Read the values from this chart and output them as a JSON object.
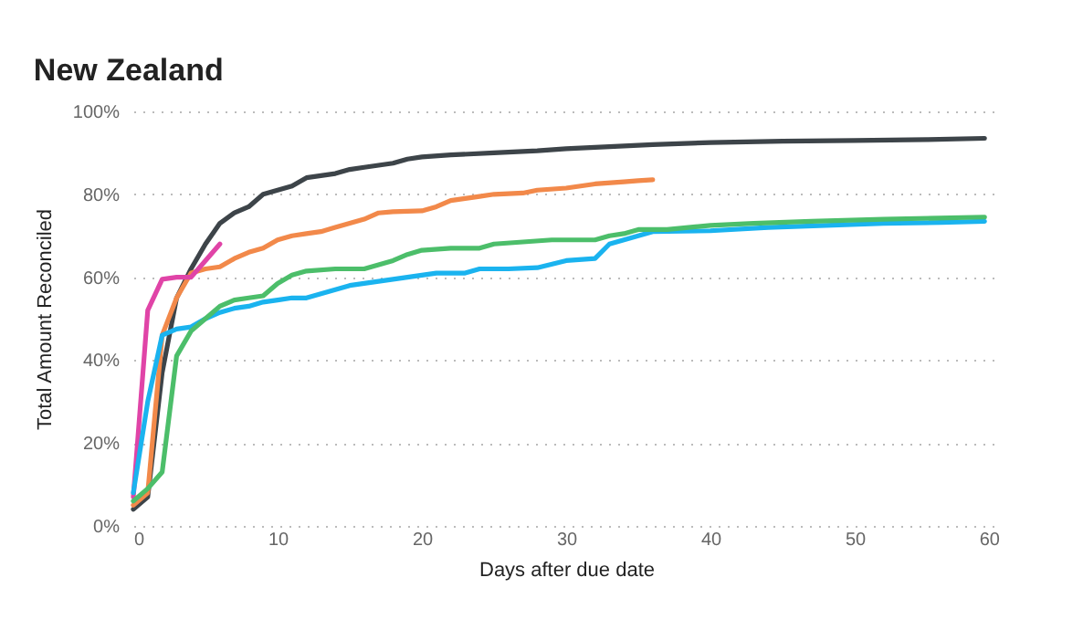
{
  "chart_data": {
    "type": "line",
    "title": "New Zealand",
    "xlabel": "Days after due date",
    "ylabel": "Total Amount Reconciled",
    "xlim": [
      0,
      60
    ],
    "xticks": [
      0,
      10,
      20,
      30,
      40,
      50,
      60
    ],
    "ylim": [
      0,
      100
    ],
    "yticks": [
      {
        "value": 0,
        "label": "0%"
      },
      {
        "value": 20,
        "label": "20%"
      },
      {
        "value": 40,
        "label": "40%"
      },
      {
        "value": 60,
        "label": "60%"
      },
      {
        "value": 80,
        "label": "80%"
      },
      {
        "value": 100,
        "label": "100%"
      }
    ],
    "grid": "y",
    "series": [
      {
        "color": "#3d4449",
        "x": [
          0,
          1,
          2,
          3,
          4,
          5,
          6,
          7,
          8,
          9,
          10,
          11,
          12,
          13,
          14,
          15,
          16,
          17,
          18,
          19,
          20,
          22,
          25,
          28,
          30,
          33,
          36,
          40,
          45,
          50,
          55,
          59
        ],
        "values": [
          4,
          7,
          37,
          55,
          62,
          68,
          73,
          75.5,
          77,
          80,
          81,
          82,
          84,
          84.5,
          85,
          86,
          86.5,
          87,
          87.5,
          88.5,
          89,
          89.5,
          90,
          90.5,
          91,
          91.5,
          92,
          92.5,
          92.8,
          93,
          93.2,
          93.5
        ]
      },
      {
        "color": "#f2894a",
        "x": [
          0,
          1,
          2,
          3,
          4,
          5,
          6,
          7,
          8,
          9,
          10,
          11,
          12,
          13,
          14,
          15,
          16,
          17,
          18,
          20,
          21,
          22,
          23,
          24,
          25,
          27,
          28,
          30,
          31,
          32,
          34,
          35,
          36
        ],
        "values": [
          5,
          8,
          46,
          55,
          61,
          62,
          62.5,
          64.5,
          66,
          67,
          69,
          70,
          70.5,
          71,
          72,
          73,
          74,
          75.5,
          75.8,
          76,
          77,
          78.5,
          79,
          79.5,
          80,
          80.3,
          81,
          81.5,
          82,
          82.5,
          83,
          83.3,
          83.5
        ]
      },
      {
        "color": "#e044a7",
        "x": [
          0,
          1,
          2,
          3,
          4,
          5,
          6
        ],
        "values": [
          7,
          52,
          59.5,
          60,
          60,
          64,
          68
        ]
      },
      {
        "color": "#1ab3ef",
        "x": [
          0,
          1,
          2,
          3,
          4,
          5,
          6,
          7,
          8,
          9,
          10,
          11,
          12,
          13,
          14,
          15,
          16,
          17,
          18,
          19,
          20,
          21,
          22,
          23,
          24,
          26,
          28,
          30,
          32,
          33,
          34,
          35,
          36,
          40,
          44,
          48,
          52,
          56,
          59
        ],
        "values": [
          8,
          30,
          46,
          47.5,
          48,
          50,
          51.5,
          52.5,
          53,
          54,
          54.5,
          55,
          55,
          56,
          57,
          58,
          58.5,
          59,
          59.5,
          60,
          60.5,
          61,
          61,
          61,
          62,
          62,
          62.3,
          64,
          64.5,
          68,
          69,
          70,
          71,
          71.2,
          72,
          72.5,
          73,
          73.2,
          73.5
        ]
      },
      {
        "color": "#4cbe6a",
        "x": [
          0,
          1,
          2,
          3,
          4,
          5,
          6,
          7,
          8,
          9,
          10,
          11,
          12,
          14,
          16,
          17,
          18,
          19,
          20,
          22,
          24,
          25,
          27,
          29,
          32,
          33,
          34,
          35,
          37,
          40,
          43,
          47,
          52,
          59
        ],
        "values": [
          6,
          9,
          13,
          41,
          47,
          50,
          53,
          54.5,
          55,
          55.5,
          58.5,
          60.5,
          61.5,
          62,
          62,
          63,
          64,
          65.5,
          66.5,
          67,
          67,
          68,
          68.5,
          69,
          69,
          70,
          70.5,
          71.5,
          71.5,
          72.5,
          73,
          73.5,
          74,
          74.5
        ]
      }
    ]
  }
}
